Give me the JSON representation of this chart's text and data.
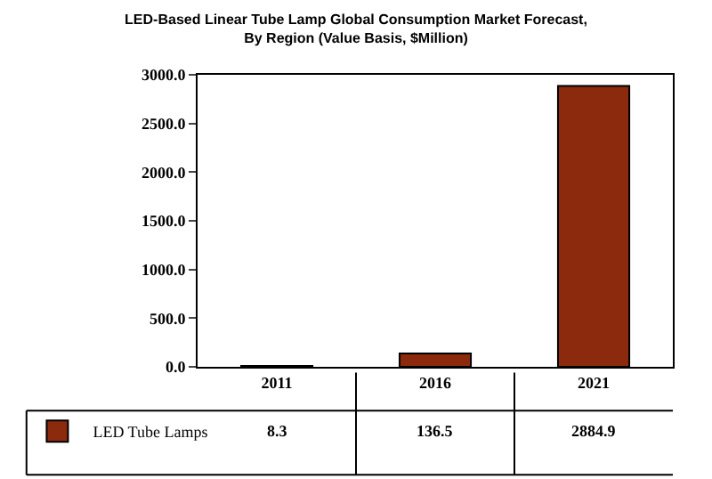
{
  "chart_data": {
    "type": "bar",
    "title": "LED-Based Linear Tube Lamp Global Consumption Market Forecast,\nBy Region (Value Basis, $Million)",
    "categories": [
      "2011",
      "2016",
      "2021"
    ],
    "series": [
      {
        "name": "LED Tube Lamps",
        "color": "#8b2a0c",
        "values": [
          8.3,
          136.5,
          2884.9
        ]
      }
    ],
    "ylim": [
      0,
      3000
    ],
    "yticks": [
      {
        "value": 0,
        "label": "0.0"
      },
      {
        "value": 500,
        "label": "500.0"
      },
      {
        "value": 1000,
        "label": "1000.0"
      },
      {
        "value": 1500,
        "label": "1500.0"
      },
      {
        "value": 2000,
        "label": "2000.0"
      },
      {
        "value": 2500,
        "label": "2500.0"
      },
      {
        "value": 3000,
        "label": "3000.0"
      }
    ],
    "data_labels": true,
    "legend": "bottom left",
    "grid": false
  }
}
